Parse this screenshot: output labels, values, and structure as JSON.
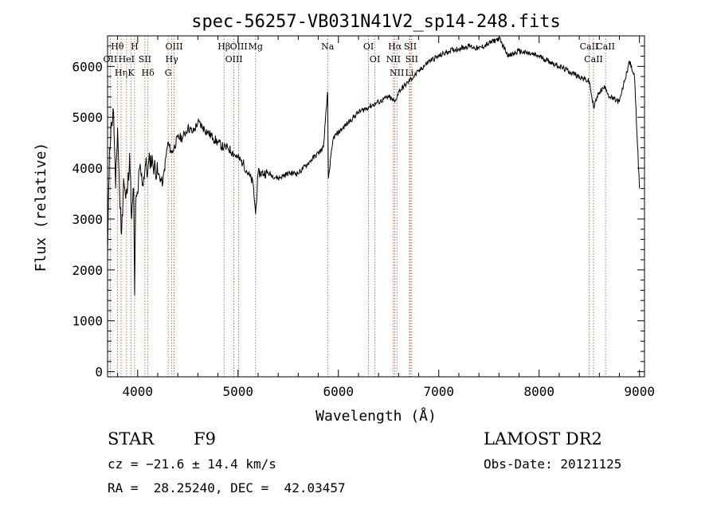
{
  "chart_data": {
    "type": "line",
    "title": "spec-56257-VB031N41V2_sp14-248.fits",
    "xlabel": "Wavelength (Å)",
    "ylabel": "Flux (relative)",
    "xlim": [
      3700,
      9050
    ],
    "ylim": [
      -100,
      6600
    ],
    "xticks": [
      "4000",
      "5000",
      "6000",
      "7000",
      "8000",
      "9000"
    ],
    "yticks": [
      "0",
      "1000",
      "2000",
      "3000",
      "4000",
      "5000",
      "6000"
    ],
    "grid": false,
    "series": [
      {
        "x": [
          3700,
          3720,
          3740,
          3760,
          3780,
          3800,
          3820,
          3840,
          3860,
          3880,
          3900,
          3920,
          3940,
          3960,
          3970,
          3980,
          4000,
          4020,
          4050,
          4080,
          4100,
          4120,
          4150,
          4200,
          4250,
          4300,
          4340,
          4400,
          4450,
          4500,
          4550,
          4600,
          4650,
          4700,
          4750,
          4800,
          4861,
          4900,
          4950,
          5000,
          5050,
          5100,
          5150,
          5175,
          5200,
          5300,
          5400,
          5500,
          5600,
          5700,
          5800,
          5850,
          5893,
          5900,
          5950,
          6000,
          6100,
          6200,
          6300,
          6400,
          6500,
          6563,
          6600,
          6700,
          6800,
          6900,
          7000,
          7100,
          7200,
          7300,
          7400,
          7500,
          7600,
          7700,
          7800,
          7900,
          8000,
          8100,
          8200,
          8300,
          8400,
          8500,
          8542,
          8600,
          8662,
          8700,
          8800,
          8850,
          8900,
          8950,
          9000
        ],
        "y": [
          2300,
          4400,
          4900,
          5100,
          3600,
          4800,
          3500,
          2700,
          3800,
          3400,
          3600,
          4300,
          3000,
          3600,
          1500,
          3300,
          3500,
          4000,
          3700,
          4100,
          3900,
          4200,
          4100,
          3900,
          3700,
          4500,
          4300,
          4600,
          4600,
          4800,
          4700,
          4900,
          4800,
          4700,
          4600,
          4500,
          4400,
          4400,
          4300,
          4200,
          4100,
          3900,
          3700,
          3100,
          3900,
          3900,
          3800,
          3900,
          3900,
          4100,
          4300,
          4400,
          5500,
          3800,
          4600,
          4700,
          4900,
          5100,
          5200,
          5300,
          5400,
          5300,
          5500,
          5700,
          5900,
          6100,
          6200,
          6300,
          6350,
          6400,
          6350,
          6450,
          6550,
          6200,
          6300,
          6250,
          6200,
          6100,
          6000,
          5900,
          5800,
          5700,
          5200,
          5500,
          5600,
          5400,
          5300,
          5700,
          6100,
          5800,
          3600
        ]
      }
    ],
    "lines": [
      {
        "label": "Hθ",
        "x": 3798
      },
      {
        "label": "OII",
        "x": 3727
      },
      {
        "label": "Hη",
        "x": 3835
      },
      {
        "label": "HeI",
        "x": 3889
      },
      {
        "label": "K",
        "x": 3934
      },
      {
        "label": "H",
        "x": 3969
      },
      {
        "label": "SII",
        "x": 4072
      },
      {
        "label": "Hδ",
        "x": 4102
      },
      {
        "label": "OIII",
        "x": 4363
      },
      {
        "label": "Hγ",
        "x": 4340
      },
      {
        "label": "G",
        "x": 4304
      },
      {
        "label": "Hβ",
        "x": 4861
      },
      {
        "label": "OIII",
        "x": 4959
      },
      {
        "label": "OIII",
        "x": 5007
      },
      {
        "label": "Mg",
        "x": 5175
      },
      {
        "label": "Na",
        "x": 5893
      },
      {
        "label": "OI",
        "x": 6300
      },
      {
        "label": "OI",
        "x": 6364
      },
      {
        "label": "Hα",
        "x": 6563
      },
      {
        "label": "NII",
        "x": 6548
      },
      {
        "label": "NII",
        "x": 6583
      },
      {
        "label": "SII",
        "x": 6716
      },
      {
        "label": "SII",
        "x": 6731
      },
      {
        "label": "Li",
        "x": 6708
      },
      {
        "label": "CaII",
        "x": 8498
      },
      {
        "label": "CaII",
        "x": 8542
      },
      {
        "label": "CaII",
        "x": 8662
      }
    ]
  },
  "info": {
    "class_label": "STAR",
    "subclass": "F9",
    "survey": "LAMOST DR2",
    "cz": "cz = −21.6 ± 14.4 km/s",
    "obs_date": "Obs-Date: 20121125",
    "coords": "RA =  28.25240, DEC =  42.03457"
  }
}
